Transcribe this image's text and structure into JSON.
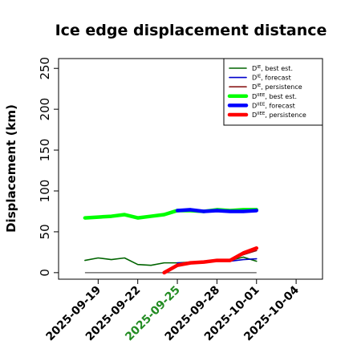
{
  "chart_data": {
    "type": "line",
    "title": "Ice edge displacement distance",
    "ylabel": "Displacement (km)",
    "xlabel": "",
    "ylim": [
      -8,
      262
    ],
    "yticks": [
      0,
      50,
      100,
      150,
      200,
      250
    ],
    "xlim": [
      "2025-09-16",
      "2025-10-06"
    ],
    "xticks": [
      "2025-09-19",
      "2025-09-22",
      "2025-09-25",
      "2025-09-28",
      "2025-10-01",
      "2025-10-04"
    ],
    "highlight_tick": "2025-09-25",
    "highlight_color": "#228B22",
    "legend_position": "top-right",
    "series": [
      {
        "name": "D",
        "sup": "IE",
        "suffix": ", best est.",
        "color": "#006400",
        "width": 1.6,
        "points": [
          [
            "2025-09-18",
            15
          ],
          [
            "2025-09-19",
            18
          ],
          [
            "2025-09-20",
            16
          ],
          [
            "2025-09-21",
            18
          ],
          [
            "2025-09-22",
            10
          ],
          [
            "2025-09-23",
            9
          ],
          [
            "2025-09-24",
            12
          ],
          [
            "2025-09-25",
            12
          ],
          [
            "2025-09-26",
            13
          ],
          [
            "2025-09-27",
            13
          ],
          [
            "2025-09-28",
            14
          ],
          [
            "2025-09-29",
            15
          ],
          [
            "2025-09-30",
            19
          ],
          [
            "2025-10-01",
            14
          ]
        ]
      },
      {
        "name": "D",
        "sup": "IE",
        "suffix": ", forecast",
        "color": "#0000cc",
        "width": 1.6,
        "points": [
          [
            "2025-09-25",
            12
          ],
          [
            "2025-09-26",
            12
          ],
          [
            "2025-09-27",
            13
          ],
          [
            "2025-09-28",
            14
          ],
          [
            "2025-09-29",
            14
          ],
          [
            "2025-09-30",
            16
          ],
          [
            "2025-10-01",
            17
          ]
        ]
      },
      {
        "name": "D",
        "sup": "IE",
        "suffix": ", persistence",
        "color": "#8b1a1a",
        "width": 1.6,
        "points": [
          [
            "2025-09-25",
            9
          ],
          [
            "2025-09-26",
            11
          ],
          [
            "2025-09-27",
            12
          ],
          [
            "2025-09-28",
            14
          ],
          [
            "2025-09-29",
            14
          ],
          [
            "2025-09-30",
            22
          ],
          [
            "2025-10-01",
            27
          ]
        ]
      },
      {
        "name": "D",
        "sup": "IIEE",
        "suffix": ", best est.",
        "color": "#00ff00",
        "width": 4.5,
        "points": [
          [
            "2025-09-18",
            67
          ],
          [
            "2025-09-19",
            68
          ],
          [
            "2025-09-20",
            69
          ],
          [
            "2025-09-21",
            71
          ],
          [
            "2025-09-22",
            67
          ],
          [
            "2025-09-23",
            69
          ],
          [
            "2025-09-24",
            71
          ],
          [
            "2025-09-25",
            76
          ],
          [
            "2025-09-26",
            76
          ],
          [
            "2025-09-27",
            75
          ],
          [
            "2025-09-28",
            77
          ],
          [
            "2025-09-29",
            76
          ],
          [
            "2025-09-30",
            77
          ],
          [
            "2025-10-01",
            77
          ]
        ]
      },
      {
        "name": "D",
        "sup": "IIEE",
        "suffix": ", forecast",
        "color": "#0000ff",
        "width": 4.5,
        "points": [
          [
            "2025-09-25",
            76
          ],
          [
            "2025-09-26",
            77
          ],
          [
            "2025-09-27",
            75
          ],
          [
            "2025-09-28",
            76
          ],
          [
            "2025-09-29",
            75
          ],
          [
            "2025-09-30",
            75
          ],
          [
            "2025-10-01",
            76
          ]
        ]
      },
      {
        "name": "D",
        "sup": "IIEE",
        "suffix": ", persistence",
        "color": "#ff0000",
        "width": 4.5,
        "points": [
          [
            "2025-09-24",
            0
          ],
          [
            "2025-09-25",
            9
          ],
          [
            "2025-09-26",
            12
          ],
          [
            "2025-09-27",
            13
          ],
          [
            "2025-09-28",
            15
          ],
          [
            "2025-09-29",
            15
          ],
          [
            "2025-09-30",
            24
          ],
          [
            "2025-10-01",
            30
          ]
        ]
      }
    ],
    "reference_line": {
      "color": "#555555",
      "points": [
        [
          "2025-09-18",
          0
        ],
        [
          "2025-10-01",
          0
        ]
      ]
    }
  }
}
